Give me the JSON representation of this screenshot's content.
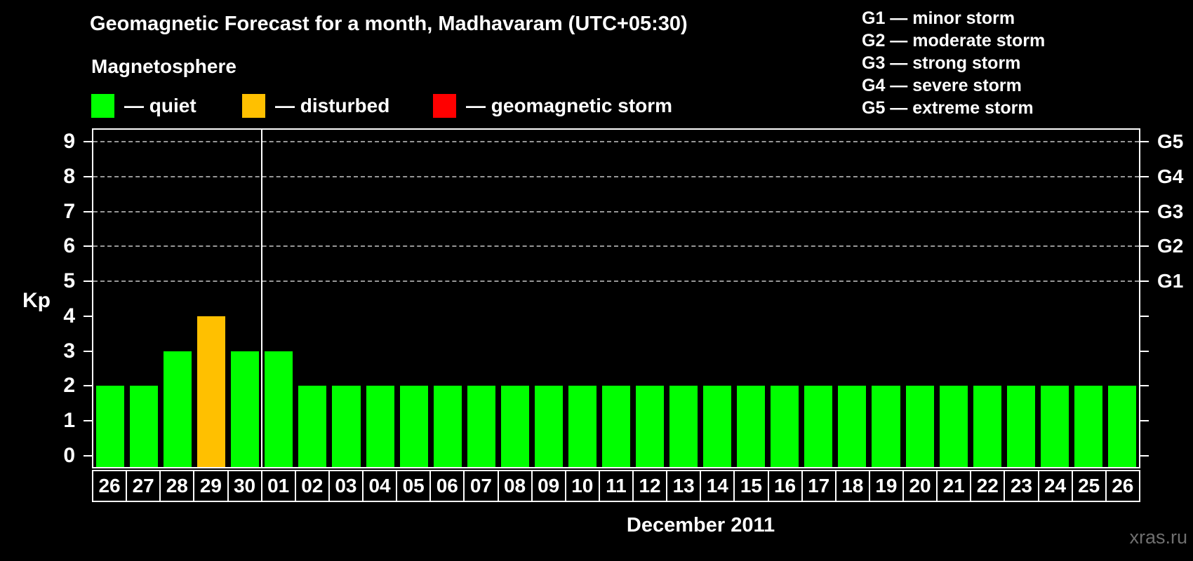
{
  "header": {
    "title": "Geomagnetic Forecast for a month, Madhavaram (UTC+05:30)",
    "subtitle": "Magnetosphere"
  },
  "magnetosphere_legend": [
    {
      "name": "quiet",
      "label": "— quiet",
      "color": "#00ff00"
    },
    {
      "name": "disturbed",
      "label": "— disturbed",
      "color": "#ffc000"
    },
    {
      "name": "storm",
      "label": "— geomagnetic storm",
      "color": "#ff0000"
    }
  ],
  "storm_scale_legend": [
    "G1 — minor storm",
    "G2 — moderate storm",
    "G3 — strong storm",
    "G4 — severe storm",
    "G5 — extreme storm"
  ],
  "watermark": "xras.ru",
  "chart_data": {
    "type": "bar",
    "title": "Geomagnetic Forecast for a month, Madhavaram (UTC+05:30)",
    "ylabel": "Kp",
    "xlabel": "December 2011",
    "ylim": [
      0,
      9
    ],
    "yticks": [
      0,
      1,
      2,
      3,
      4,
      5,
      6,
      7,
      8,
      9
    ],
    "gridlines_kp": [
      5,
      6,
      7,
      8,
      9
    ],
    "right_axis": [
      {
        "kp": 5,
        "label": "G1"
      },
      {
        "kp": 6,
        "label": "G2"
      },
      {
        "kp": 7,
        "label": "G3"
      },
      {
        "kp": 8,
        "label": "G4"
      },
      {
        "kp": 9,
        "label": "G5"
      }
    ],
    "categories": [
      "26",
      "27",
      "28",
      "29",
      "30",
      "01",
      "02",
      "03",
      "04",
      "05",
      "06",
      "07",
      "08",
      "09",
      "10",
      "11",
      "12",
      "13",
      "14",
      "15",
      "16",
      "17",
      "18",
      "19",
      "20",
      "21",
      "22",
      "23",
      "24",
      "25",
      "26"
    ],
    "values": [
      2,
      2,
      3,
      4,
      3,
      3,
      2,
      2,
      2,
      2,
      2,
      2,
      2,
      2,
      2,
      2,
      2,
      2,
      2,
      2,
      2,
      2,
      2,
      2,
      2,
      2,
      2,
      2,
      2,
      2,
      2
    ],
    "statuses": [
      "quiet",
      "quiet",
      "quiet",
      "disturbed",
      "quiet",
      "quiet",
      "quiet",
      "quiet",
      "quiet",
      "quiet",
      "quiet",
      "quiet",
      "quiet",
      "quiet",
      "quiet",
      "quiet",
      "quiet",
      "quiet",
      "quiet",
      "quiet",
      "quiet",
      "quiet",
      "quiet",
      "quiet",
      "quiet",
      "quiet",
      "quiet",
      "quiet",
      "quiet",
      "quiet",
      "quiet"
    ],
    "month_separator_after_index": 4,
    "status_colors": {
      "quiet": "#00ff00",
      "disturbed": "#ffc000",
      "storm": "#ff0000"
    },
    "grid": true,
    "legend_position": "top"
  }
}
